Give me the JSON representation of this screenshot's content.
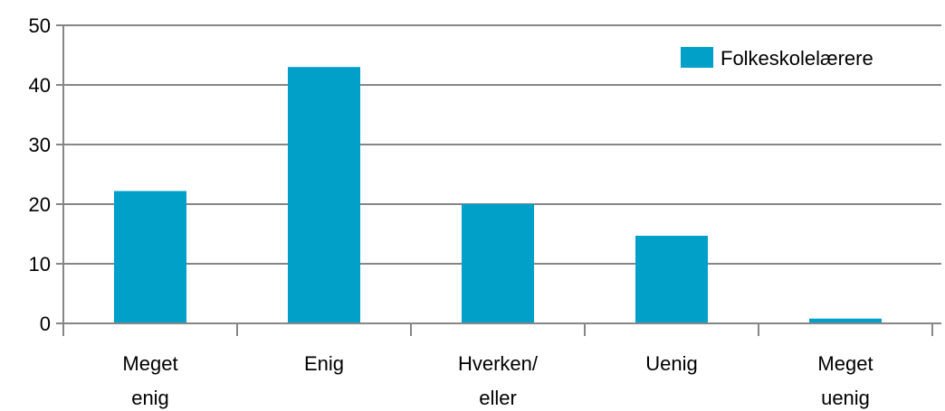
{
  "chart_data": {
    "type": "bar",
    "categories": [
      [
        "Meget",
        "enig"
      ],
      [
        "Enig"
      ],
      [
        "Hverken/",
        "eller"
      ],
      [
        "Uenig"
      ],
      [
        "Meget",
        "uenig"
      ]
    ],
    "series": [
      {
        "name": "Folkeskolelærere",
        "values": [
          22.2,
          43,
          20,
          14.7,
          0.8
        ],
        "color": "#00a0c9"
      }
    ],
    "ylim": [
      0,
      50
    ],
    "yticks": [
      0,
      10,
      20,
      30,
      40,
      50
    ],
    "grid": true,
    "legend_position": "top-right"
  }
}
